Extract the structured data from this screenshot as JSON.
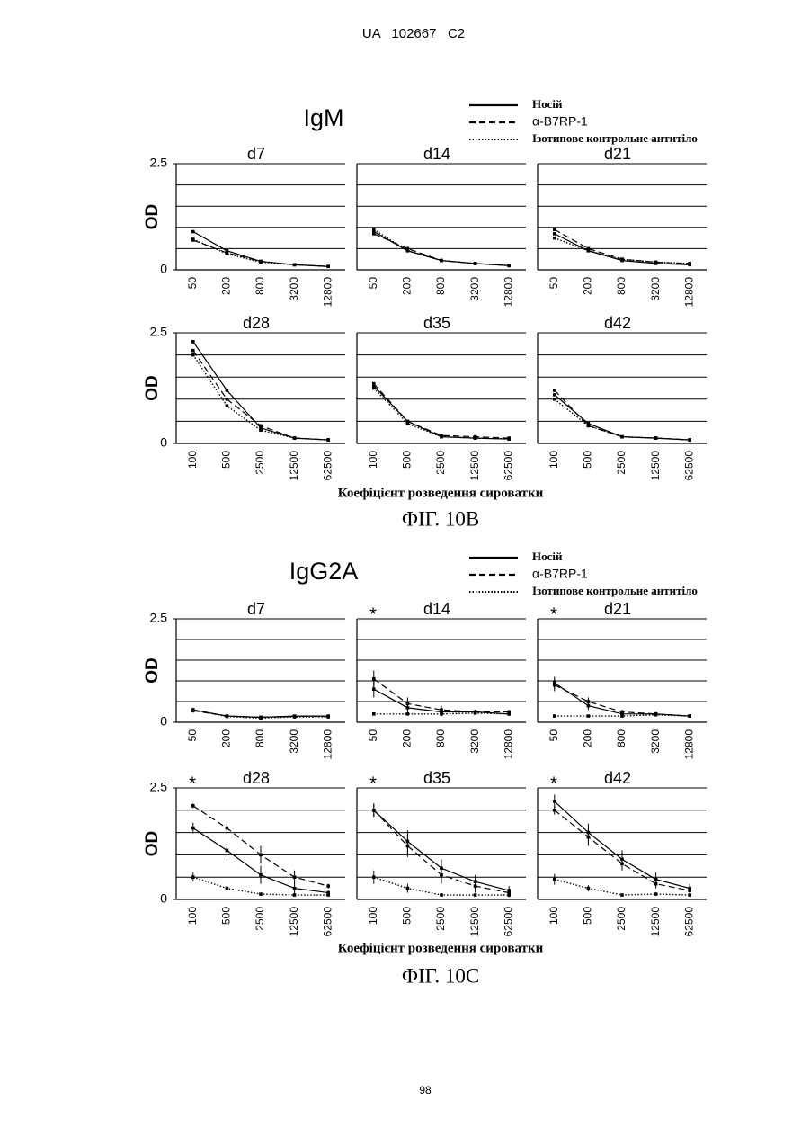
{
  "header": "UA   102667   C2",
  "page_number": "98",
  "figures": [
    {
      "title": "IgM",
      "xlabel": "Коефіцієнт розведення сироватки",
      "caption": "ФІГ. 10B",
      "legend": [
        {
          "name": "Носій",
          "style": "solid"
        },
        {
          "name": "α-B7RP-1",
          "style": "dashed"
        },
        {
          "name": "Ізотипове контрольне антитіло",
          "style": "dotted"
        }
      ]
    },
    {
      "title": "IgG2A",
      "xlabel": "Коефіцієнт розведення сироватки",
      "caption": "ФІГ. 10C",
      "legend": [
        {
          "name": "Носій",
          "style": "solid"
        },
        {
          "name": "α-B7RP-1",
          "style": "dashed"
        },
        {
          "name": "Ізотипове контрольне антитіло",
          "style": "dotted"
        }
      ]
    }
  ],
  "chart_data": [
    {
      "type": "line",
      "title": "d7",
      "ylabel": "OD",
      "yticks": [
        0,
        2.5
      ],
      "ylim": [
        0,
        2.5
      ],
      "gridlines": [
        0.5,
        1,
        1.5,
        2,
        2.5
      ],
      "color": "#000000",
      "categories": [
        "50",
        "200",
        "800",
        "3200",
        "12800"
      ],
      "series": [
        {
          "style": "solid",
          "values": [
            0.9,
            0.45,
            0.2,
            0.12,
            0.08
          ]
        },
        {
          "style": "dashed",
          "values": [
            0.7,
            0.4,
            0.2,
            0.12,
            0.08
          ]
        },
        {
          "style": "dotted",
          "values": [
            0.72,
            0.38,
            0.18,
            0.12,
            0.08
          ]
        }
      ]
    },
    {
      "type": "line",
      "title": "d14",
      "ylim": [
        0,
        2.5
      ],
      "gridlines": [
        0.5,
        1,
        1.5,
        2,
        2.5
      ],
      "color": "#000000",
      "categories": [
        "50",
        "200",
        "800",
        "3200",
        "12800"
      ],
      "series": [
        {
          "style": "solid",
          "values": [
            0.9,
            0.45,
            0.22,
            0.15,
            0.1
          ]
        },
        {
          "style": "dashed",
          "values": [
            0.85,
            0.5,
            0.22,
            0.15,
            0.1
          ]
        },
        {
          "style": "dotted",
          "values": [
            0.95,
            0.45,
            0.22,
            0.15,
            0.1
          ]
        }
      ]
    },
    {
      "type": "line",
      "title": "d21",
      "ylim": [
        0,
        2.5
      ],
      "gridlines": [
        0.5,
        1,
        1.5,
        2,
        2.5
      ],
      "color": "#000000",
      "categories": [
        "50",
        "200",
        "800",
        "3200",
        "12800"
      ],
      "series": [
        {
          "style": "solid",
          "values": [
            0.85,
            0.45,
            0.22,
            0.15,
            0.12
          ]
        },
        {
          "style": "dashed",
          "values": [
            0.95,
            0.5,
            0.25,
            0.18,
            0.15
          ]
        },
        {
          "style": "dotted",
          "values": [
            0.75,
            0.45,
            0.25,
            0.18,
            0.15
          ]
        }
      ]
    },
    {
      "type": "line",
      "title": "d28",
      "ylabel": "OD",
      "yticks": [
        0,
        2.5
      ],
      "ylim": [
        0,
        2.5
      ],
      "gridlines": [
        0.5,
        1,
        1.5,
        2,
        2.5
      ],
      "color": "#000000",
      "categories": [
        "100",
        "500",
        "2500",
        "12500",
        "62500"
      ],
      "series": [
        {
          "style": "solid",
          "values": [
            2.3,
            1.2,
            0.35,
            0.12,
            0.08
          ]
        },
        {
          "style": "dashed",
          "values": [
            2.1,
            1.0,
            0.4,
            0.12,
            0.08
          ]
        },
        {
          "style": "dotted",
          "values": [
            2.0,
            0.85,
            0.3,
            0.12,
            0.08
          ]
        }
      ]
    },
    {
      "type": "line",
      "title": "d35",
      "ylim": [
        0,
        2.5
      ],
      "gridlines": [
        0.5,
        1,
        1.5,
        2,
        2.5
      ],
      "color": "#000000",
      "categories": [
        "100",
        "500",
        "2500",
        "12500",
        "62500"
      ],
      "series": [
        {
          "style": "solid",
          "values": [
            1.3,
            0.5,
            0.15,
            0.12,
            0.1
          ]
        },
        {
          "style": "dashed",
          "values": [
            1.35,
            0.5,
            0.18,
            0.15,
            0.12
          ]
        },
        {
          "style": "dotted",
          "values": [
            1.25,
            0.45,
            0.15,
            0.12,
            0.1
          ]
        }
      ]
    },
    {
      "type": "line",
      "title": "d42",
      "ylim": [
        0,
        2.5
      ],
      "gridlines": [
        0.5,
        1,
        1.5,
        2,
        2.5
      ],
      "color": "#000000",
      "categories": [
        "100",
        "500",
        "2500",
        "12500",
        "62500"
      ],
      "series": [
        {
          "style": "solid",
          "values": [
            1.1,
            0.45,
            0.15,
            0.12,
            0.08
          ]
        },
        {
          "style": "dashed",
          "values": [
            1.2,
            0.4,
            0.15,
            0.12,
            0.08
          ]
        },
        {
          "style": "dotted",
          "values": [
            1.0,
            0.4,
            0.15,
            0.12,
            0.08
          ]
        }
      ]
    },
    {
      "type": "line",
      "title": "d7",
      "ylabel": "OD",
      "yticks": [
        0,
        2.5
      ],
      "ylim": [
        0,
        2.5
      ],
      "gridlines": [
        0.5,
        1,
        1.5,
        2,
        2.5
      ],
      "color": "#000000",
      "categories": [
        "50",
        "200",
        "800",
        "3200",
        "12800"
      ],
      "series": [
        {
          "style": "solid",
          "values": [
            0.3,
            0.15,
            0.12,
            0.15,
            0.15
          ],
          "errors": [
            0.05,
            0.03,
            0.03,
            0.03,
            0.03
          ]
        },
        {
          "style": "dashed",
          "values": [
            0.28,
            0.15,
            0.12,
            0.14,
            0.14
          ],
          "errors": [
            0.05,
            0.03,
            0.03,
            0.03,
            0.03
          ]
        },
        {
          "style": "dotted",
          "values": [
            0.3,
            0.14,
            0.1,
            0.13,
            0.13
          ],
          "errors": [
            0.05,
            0.03,
            0.03,
            0.03,
            0.03
          ]
        }
      ]
    },
    {
      "type": "line",
      "title": "d14",
      "annotation": "*",
      "ylim": [
        0,
        2.5
      ],
      "gridlines": [
        0.5,
        1,
        1.5,
        2,
        2.5
      ],
      "color": "#000000",
      "categories": [
        "50",
        "200",
        "800",
        "3200",
        "12800"
      ],
      "series": [
        {
          "style": "solid",
          "values": [
            0.8,
            0.35,
            0.25,
            0.25,
            0.2
          ],
          "errors": [
            0.2,
            0.15,
            0.1,
            0.05,
            0.05
          ]
        },
        {
          "style": "dashed",
          "values": [
            1.05,
            0.45,
            0.3,
            0.25,
            0.25
          ],
          "errors": [
            0.2,
            0.15,
            0.1,
            0.05,
            0.05
          ]
        },
        {
          "style": "dotted",
          "values": [
            0.2,
            0.2,
            0.2,
            0.22,
            0.2
          ],
          "errors": [
            0.03,
            0.03,
            0.03,
            0.03,
            0.03
          ]
        }
      ]
    },
    {
      "type": "line",
      "title": "d21",
      "annotation": "*",
      "ylim": [
        0,
        2.5
      ],
      "gridlines": [
        0.5,
        1,
        1.5,
        2,
        2.5
      ],
      "color": "#000000",
      "categories": [
        "50",
        "200",
        "800",
        "3200",
        "12800"
      ],
      "series": [
        {
          "style": "solid",
          "values": [
            0.95,
            0.4,
            0.2,
            0.2,
            0.15
          ],
          "errors": [
            0.15,
            0.1,
            0.05,
            0.05,
            0.03
          ]
        },
        {
          "style": "dashed",
          "values": [
            0.9,
            0.5,
            0.25,
            0.2,
            0.15
          ],
          "errors": [
            0.15,
            0.1,
            0.05,
            0.05,
            0.03
          ]
        },
        {
          "style": "dotted",
          "values": [
            0.15,
            0.15,
            0.15,
            0.18,
            0.15
          ],
          "errors": [
            0.03,
            0.03,
            0.03,
            0.03,
            0.03
          ]
        }
      ]
    },
    {
      "type": "line",
      "title": "d28",
      "annotation": "*",
      "ylabel": "OD",
      "yticks": [
        0,
        2.5
      ],
      "ylim": [
        0,
        2.5
      ],
      "gridlines": [
        0.5,
        1,
        1.5,
        2,
        2.5
      ],
      "color": "#000000",
      "categories": [
        "100",
        "500",
        "2500",
        "12500",
        "62500"
      ],
      "series": [
        {
          "style": "solid",
          "values": [
            1.6,
            1.1,
            0.55,
            0.25,
            0.15
          ],
          "errors": [
            0.12,
            0.15,
            0.2,
            0.12,
            0.05
          ]
        },
        {
          "style": "dashed",
          "values": [
            2.1,
            1.6,
            1.0,
            0.5,
            0.3
          ],
          "errors": [
            0.05,
            0.1,
            0.2,
            0.15,
            0.05
          ]
        },
        {
          "style": "dotted",
          "values": [
            0.5,
            0.25,
            0.12,
            0.1,
            0.1
          ],
          "errors": [
            0.1,
            0.05,
            0.03,
            0.03,
            0.03
          ]
        }
      ]
    },
    {
      "type": "line",
      "title": "d35",
      "annotation": "*",
      "ylim": [
        0,
        2.5
      ],
      "gridlines": [
        0.5,
        1,
        1.5,
        2,
        2.5
      ],
      "color": "#000000",
      "categories": [
        "100",
        "500",
        "2500",
        "12500",
        "62500"
      ],
      "series": [
        {
          "style": "solid",
          "values": [
            2.0,
            1.3,
            0.7,
            0.4,
            0.2
          ],
          "errors": [
            0.15,
            0.25,
            0.2,
            0.15,
            0.1
          ]
        },
        {
          "style": "dashed",
          "values": [
            2.0,
            1.2,
            0.55,
            0.3,
            0.15
          ],
          "errors": [
            0.15,
            0.25,
            0.2,
            0.15,
            0.1
          ]
        },
        {
          "style": "dotted",
          "values": [
            0.5,
            0.25,
            0.1,
            0.1,
            0.1
          ],
          "errors": [
            0.15,
            0.1,
            0.03,
            0.03,
            0.03
          ]
        }
      ]
    },
    {
      "type": "line",
      "title": "d42",
      "annotation": "*",
      "ylim": [
        0,
        2.5
      ],
      "gridlines": [
        0.5,
        1,
        1.5,
        2,
        2.5
      ],
      "color": "#000000",
      "categories": [
        "100",
        "500",
        "2500",
        "12500",
        "62500"
      ],
      "series": [
        {
          "style": "solid",
          "values": [
            2.2,
            1.5,
            0.9,
            0.45,
            0.25
          ],
          "errors": [
            0.15,
            0.2,
            0.2,
            0.15,
            0.1
          ]
        },
        {
          "style": "dashed",
          "values": [
            2.0,
            1.4,
            0.8,
            0.35,
            0.2
          ],
          "errors": [
            0.1,
            0.2,
            0.15,
            0.1,
            0.05
          ]
        },
        {
          "style": "dotted",
          "values": [
            0.45,
            0.25,
            0.1,
            0.12,
            0.1
          ],
          "errors": [
            0.12,
            0.07,
            0.03,
            0.03,
            0.03
          ]
        }
      ]
    }
  ]
}
